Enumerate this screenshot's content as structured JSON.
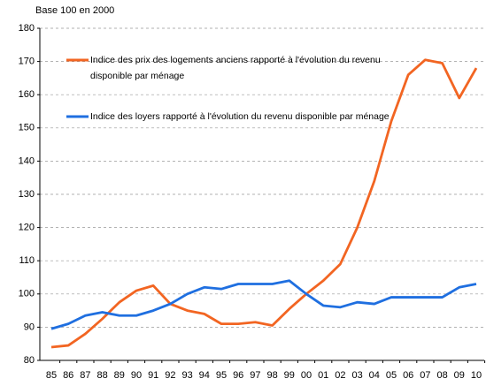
{
  "chart_data": {
    "type": "line",
    "subtitle": "Base 100 en 2000",
    "categories": [
      "85",
      "86",
      "87",
      "88",
      "89",
      "90",
      "91",
      "92",
      "93",
      "94",
      "95",
      "96",
      "97",
      "98",
      "99",
      "00",
      "01",
      "02",
      "03",
      "04",
      "05",
      "06",
      "07",
      "08",
      "09",
      "10"
    ],
    "series": [
      {
        "name": "Indice des prix des logements anciens rapporté à l'évolution du revenu disponible par ménage",
        "color": "#f26522",
        "values": [
          84,
          84.5,
          88,
          92.5,
          97.5,
          101,
          102.5,
          97,
          95,
          94,
          91,
          91,
          91.5,
          90.5,
          95.5,
          100,
          104,
          109,
          120,
          134,
          152,
          166,
          170.5,
          169.5,
          159,
          168
        ]
      },
      {
        "name": "Indice des loyers rapporté à l'évolution du revenu disponible par ménage",
        "color": "#1f6fe0",
        "values": [
          89.5,
          91,
          93.5,
          94.5,
          93.5,
          93.5,
          95,
          97,
          100,
          102,
          101.5,
          103,
          103,
          103,
          104,
          100,
          96.5,
          96,
          97.5,
          97,
          99,
          99,
          99,
          99,
          102,
          103
        ]
      }
    ],
    "ylim": [
      80,
      180
    ],
    "yticks": [
      80,
      90,
      100,
      110,
      120,
      130,
      140,
      150,
      160,
      170,
      180
    ],
    "grid": true
  }
}
